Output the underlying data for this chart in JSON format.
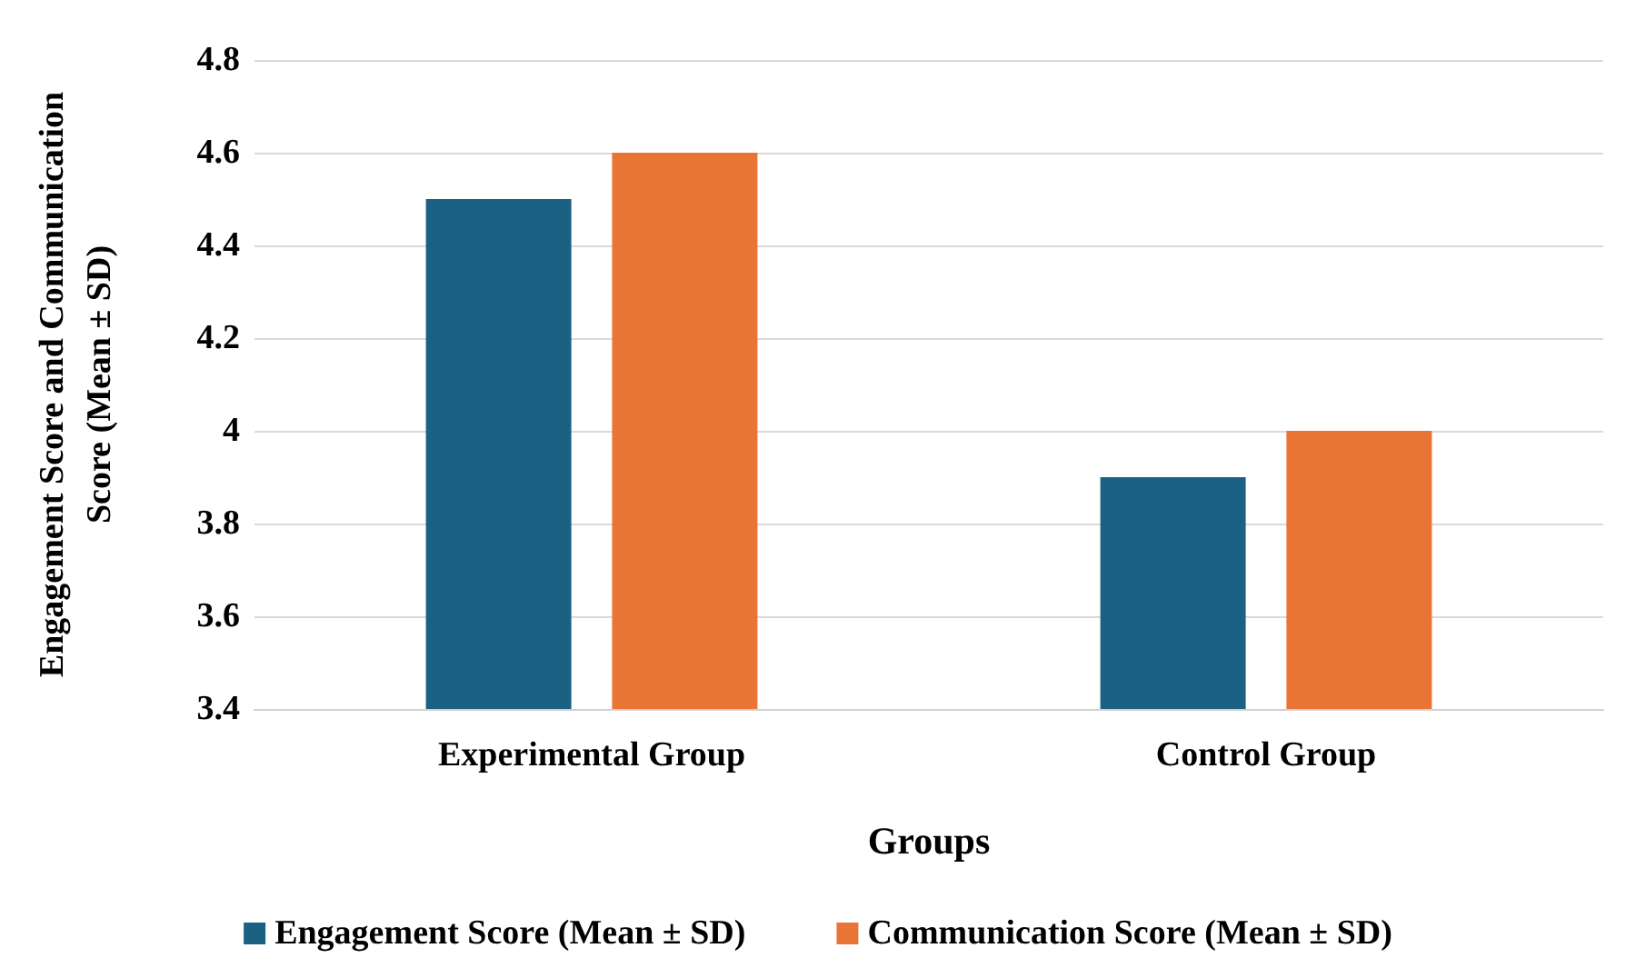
{
  "chart_data": {
    "type": "bar",
    "xlabel": "Groups",
    "ylabel": "Engagement Score and Communication\nScore (Mean ± SD)",
    "categories": [
      "Experimental Group",
      "Control Group"
    ],
    "series": [
      {
        "name": "Engagement Score (Mean ± SD)",
        "color": "#1b6184",
        "values": [
          4.5,
          3.9
        ]
      },
      {
        "name": "Communication Score (Mean ± SD)",
        "color": "#e97535",
        "values": [
          4.6,
          4.0
        ]
      }
    ],
    "ylim": [
      3.4,
      4.8
    ],
    "yticks": [
      3.4,
      3.6,
      3.8,
      4,
      4.2,
      4.4,
      4.6,
      4.8
    ],
    "grid": "y",
    "legend": "bottom"
  }
}
